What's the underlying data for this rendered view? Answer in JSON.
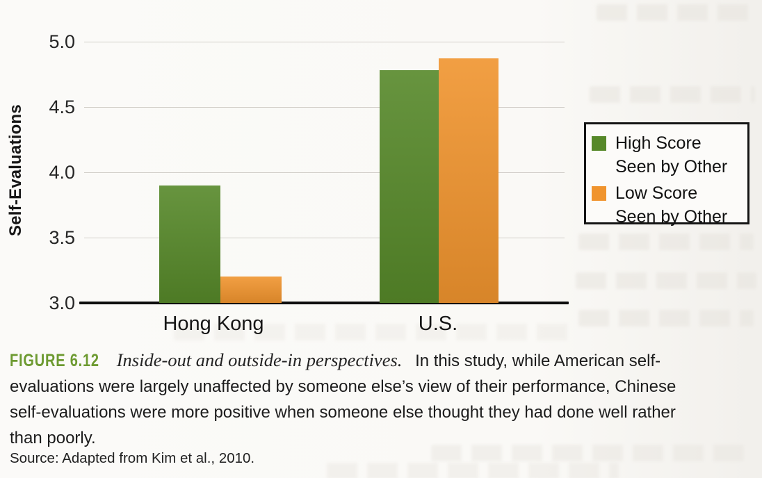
{
  "figure": {
    "label": "FIGURE 6.12",
    "title": "Inside-out and outside-in perspectives.",
    "caption_lines": [
      "In this study, while American self-",
      "evaluations were largely unaffected by someone else’s view of their performance, Chinese",
      "self-evaluations were more positive when someone else thought they had done well rather",
      "than poorly."
    ],
    "source": "Source: Adapted from Kim et al., 2010."
  },
  "legend": {
    "entries": [
      {
        "line1": "High Score",
        "line2": "Seen by Other",
        "color": "#568829"
      },
      {
        "line1": "Low Score",
        "line2": "Seen by Other",
        "color": "#f0942e"
      }
    ]
  },
  "chart_data": {
    "type": "bar",
    "categories": [
      "Hong Kong",
      "U.S."
    ],
    "series": [
      {
        "name": "High Score Seen by Other",
        "color": "#568829",
        "values": [
          3.9,
          4.78
        ]
      },
      {
        "name": "Low Score Seen by Other",
        "color": "#f0942e",
        "values": [
          3.2,
          4.87
        ]
      }
    ],
    "title": "",
    "xlabel": "",
    "ylabel": "Self-Evaluations",
    "ylim": [
      3.0,
      5.0
    ],
    "ytick_labels": [
      "5.0",
      "4.5",
      "4.0",
      "3.5",
      "3.0"
    ],
    "grid": true,
    "legend_position": "center-right"
  }
}
